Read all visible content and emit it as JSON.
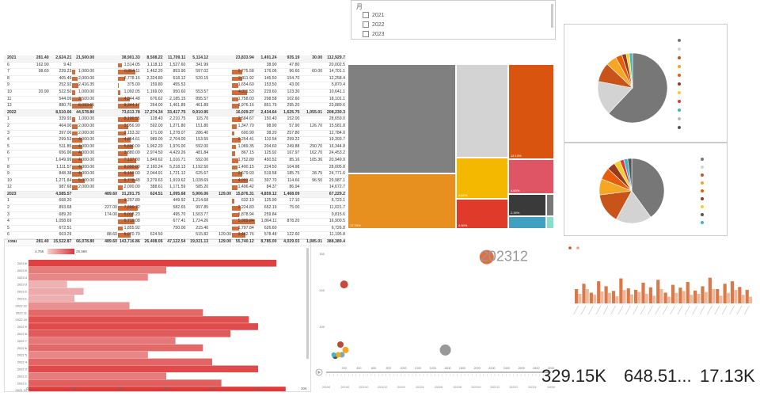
{
  "slicer": {
    "title": "月",
    "options": [
      "2021",
      "2022",
      "2023"
    ]
  },
  "matrix": {
    "rows": [
      {
        "type": "yr",
        "label": "2021",
        "cells": [
          "281.40",
          "2,624.21",
          "21,500.00",
          "",
          "38,901.33",
          "8,508.22",
          "11,709.11",
          "5,114.12",
          "",
          "23,833.94",
          "1,491.24",
          "935.19",
          "30.00",
          "112,929.7"
        ]
      },
      {
        "type": "m",
        "label": "6",
        "cells": [
          "162.90",
          "9.42",
          "",
          "",
          "1,514.05",
          "1,118.13",
          "1,527.60",
          "341.99",
          "",
          "",
          "38.90",
          "47.80",
          "",
          "20,002.5"
        ]
      },
      {
        "type": "m",
        "label": "7",
        "cells": [
          "98.60",
          "239.23",
          "1,000.00",
          "",
          "6,854.11",
          "1,462.20",
          "853.90",
          "597.02",
          "",
          "2,775.58",
          "176.06",
          "96.60",
          "60.00",
          "14,701.1"
        ]
      },
      {
        "type": "m",
        "label": "8",
        "cells": [
          "",
          "405.49",
          "2,000.00",
          "",
          "2,778.16",
          "2,324.80",
          "618.12",
          "520.15",
          "",
          "2,811.92",
          "145.50",
          "154.70",
          "",
          "12,258.4"
        ]
      },
      {
        "type": "m",
        "label": "9",
        "cells": [
          "",
          "252.92",
          "2,416.35",
          "",
          "375.00",
          "159.80",
          "455.53",
          "",
          "",
          "1,654.60",
          "153.50",
          "43.00",
          "",
          "5,870.4"
        ]
      },
      {
        "type": "m",
        "label": "10",
        "cells": [
          "20.90",
          "522.50",
          "1,000.00",
          "",
          "1,092.05",
          "1,169.00",
          "950.60",
          "553.57",
          "",
          "4,011.53",
          "229.60",
          "123.30",
          "",
          "10,641.1"
        ]
      },
      {
        "type": "m",
        "label": "11",
        "cells": [
          "",
          "544.09",
          "3,500.00",
          "",
          "4,844.48",
          "676.62",
          "2,185.15",
          "895.57",
          "",
          "1,758.03",
          "298.58",
          "102.60",
          "",
          "18,101.1"
        ]
      },
      {
        "type": "m",
        "label": "12",
        "cells": [
          "",
          "880.76",
          "8,083.65",
          "",
          "8,344.17",
          "264.00",
          "1,461.89",
          "461.89",
          "",
          "1,976.16",
          "851.79",
          "295.20",
          "",
          "23,889.6"
        ]
      },
      {
        "type": "yr",
        "label": "2022",
        "cells": [
          "",
          "8,510.06",
          "44,578.80",
          "",
          "73,613.78",
          "17,274.34",
          "33,417.75",
          "9,910.95",
          "",
          "16,029.27",
          "2,434.64",
          "1,625.75",
          "1,055.01",
          "208,230.3"
        ]
      },
      {
        "type": "m",
        "label": "1",
        "cells": [
          "",
          "339.93",
          "1,000.00",
          "",
          "8,100.55",
          "128.40",
          "2,210.75",
          "115.70",
          "",
          "2,584.67",
          "150.40",
          "152.00",
          "",
          "28,659.0"
        ]
      },
      {
        "type": "m",
        "label": "2",
        "cells": [
          "",
          "464.00",
          "2,000.00",
          "",
          "3,956.90",
          "592.00",
          "1,271.80",
          "151.80",
          "",
          "1,347.70",
          "98.90",
          "57.90",
          "126.70",
          "15,581.8"
        ]
      },
      {
        "type": "m",
        "label": "3",
        "cells": [
          "",
          "397.06",
          "2,000.00",
          "",
          "3,153.32",
          "171.00",
          "1,278.07",
          "286.40",
          "",
          "600.90",
          "38.20",
          "257.80",
          "",
          "12,784.0"
        ]
      },
      {
        "type": "m",
        "label": "4",
        "cells": [
          "",
          "299.53",
          "4,000.00",
          "",
          "4,854.61",
          "989.00",
          "2,704.00",
          "153.55",
          "",
          "2,254.41",
          "110.54",
          "299.22",
          "",
          "19,393.7"
        ]
      },
      {
        "type": "m",
        "label": "5",
        "cells": [
          "",
          "511.85",
          "4,000.00",
          "",
          "5,890.00",
          "1,962.20",
          "1,976.00",
          "592.00",
          "",
          "1,089.35",
          "204.60",
          "249.88",
          "290.70",
          "16,344.8"
        ]
      },
      {
        "type": "m",
        "label": "6",
        "cells": [
          "",
          "656.96",
          "4,000.00",
          "",
          "3,880.00",
          "2,974.50",
          "4,429.26",
          "481.84",
          "",
          "867.15",
          "125.92",
          "167.97",
          "162.70",
          "24,453.2"
        ]
      },
      {
        "type": "m",
        "label": "7",
        "cells": [
          "",
          "1,649.99",
          "4,000.00",
          "",
          "7,137.80",
          "1,849.62",
          "1,016.71",
          "592.00",
          "",
          "1,752.89",
          "450.52",
          "85.16",
          "105.36",
          "20,949.9"
        ]
      },
      {
        "type": "m",
        "label": "8",
        "cells": [
          "",
          "1,111.57",
          "4,000.00",
          "",
          "8,000.00",
          "2,160.24",
          "5,218.13",
          "1,192.50",
          "",
          "1,400.15",
          "224.50",
          "104.98",
          "",
          "28,005.8"
        ]
      },
      {
        "type": "m",
        "label": "9",
        "cells": [
          "",
          "848.38",
          "4,000.00",
          "",
          "6,160.00",
          "2,044.91",
          "1,721.12",
          "625.67",
          "",
          "2,679.93",
          "519.58",
          "185.75",
          "28.75",
          "24,771.6"
        ]
      },
      {
        "type": "m",
        "label": "10",
        "cells": [
          "",
          "1,271.84",
          "5,000.00",
          "",
          "6,778.48",
          "3,279.63",
          "1,919.62",
          "1,028.69",
          "",
          "4,091.41",
          "397.70",
          "114.66",
          "96.50",
          "29,987.1"
        ]
      },
      {
        "type": "m",
        "label": "12",
        "cells": [
          "",
          "987.68",
          "2,000.00",
          "",
          "2,000.00",
          "388.61",
          "1,171.59",
          "585.20",
          "",
          "1,496.42",
          "84.37",
          "86.94",
          "",
          "14,672.7"
        ]
      },
      {
        "type": "yr",
        "label": "2023",
        "cells": [
          "",
          "4,585.57",
          "",
          "489.60",
          "31,201.75",
          "624.51",
          "1,095.68",
          "5,906.06",
          "129.00",
          "15,876.31",
          "4,859.12",
          "1,468.09",
          "",
          "67,229.2"
        ]
      },
      {
        "type": "m",
        "label": "1",
        "cells": [
          "",
          "668.20",
          "",
          "",
          "3,297.80",
          "",
          "449.92",
          "1,214.68",
          "",
          "632.10",
          "125.90",
          "17.10",
          "",
          "6,723.1"
        ]
      },
      {
        "type": "m",
        "label": "2",
        "cells": [
          "",
          "893.68",
          "",
          "227.00",
          "7,890.72",
          "",
          "582.65",
          "997.85",
          "",
          "2,224.83",
          "652.19",
          "75.00",
          "",
          "11,021.7"
        ]
      },
      {
        "type": "m",
        "label": "3",
        "cells": [
          "",
          "689.20",
          "",
          "174.00",
          "6,018.23",
          "",
          "495.70",
          "1,503.77",
          "",
          "1,878.94",
          "259.84",
          "",
          "",
          "9,815.6"
        ]
      },
      {
        "type": "m",
        "label": "4",
        "cells": [
          "",
          "1,058.69",
          "",
          "",
          "6,710.08",
          "",
          "677.41",
          "1,724.26",
          "",
          "5,989.84",
          "1,864.11",
          "878.20",
          "",
          "16,900.5"
        ]
      },
      {
        "type": "m",
        "label": "5",
        "cells": [
          "",
          "672.51",
          "",
          "",
          "1,855.92",
          "",
          "750.00",
          "215.40",
          "",
          "1,797.84",
          "626.60",
          "",
          "",
          "6,726.8"
        ]
      },
      {
        "type": "m",
        "label": "6",
        "cells": [
          "",
          "603.29",
          "",
          "88.60",
          "5,070.70",
          "624.50",
          "",
          "515.82",
          "129.00",
          "3,462.76",
          "578.48",
          "122.60",
          "",
          "11,195.8"
        ]
      },
      {
        "type": "tot",
        "label": "Total",
        "cells": [
          "281.40",
          "15,522.87",
          "66,078.80",
          "489.60",
          "143,716.86",
          "26,408.06",
          "47,122.54",
          "19,021.13",
          "129.00",
          "55,740.12",
          "8,785.00",
          "4,029.03",
          "1,085.01",
          "388,389.4"
        ]
      }
    ]
  },
  "treemap": {
    "labels": [
      "12.13%",
      "4.62%",
      "4.60%",
      "4.60%",
      "2.39%",
      "17.70%"
    ]
  },
  "pie1": {
    "slices": [
      62,
      16,
      9,
      5,
      3,
      2,
      1.5,
      1.5
    ],
    "colors": [
      "#777777",
      "#d3d3d3",
      "#c8541a",
      "#f5a623",
      "#e85d0c",
      "#9b3a1a",
      "#f4cf2a",
      "#3fb5c8"
    ],
    "legend_colors": [
      "#777777",
      "#d3d3d3",
      "#c8541a",
      "#f5a623",
      "#e85d0c",
      "#9b3a1a",
      "#f4cf2a",
      "#e03b3b",
      "#3fb5c8",
      "#bbbbbb",
      "#555555"
    ]
  },
  "pie2": {
    "slices": [
      40,
      18,
      15,
      8,
      6,
      4,
      3,
      2,
      2,
      2
    ],
    "colors": [
      "#777777",
      "#d3d3d3",
      "#c8541a",
      "#f5a623",
      "#e85d0c",
      "#9b3a1a",
      "#f4cf2a",
      "#e03b3b",
      "#3fb5c8",
      "#555555"
    ],
    "legend_colors": [
      "#777777",
      "#d3d3d3",
      "#c8541a",
      "#f5a623",
      "#e85d0c",
      "#9b3a1a",
      "#f4cf2a",
      "#555555",
      "#3fb5c8"
    ]
  },
  "chart_data": [
    {
      "type": "bar",
      "orientation": "horizontal",
      "legend_min": "4,766",
      "legend_max": "29,989",
      "categories": [
        "2023 6",
        "2023 5",
        "2023 4",
        "2023 3",
        "2023 2",
        "2023 1",
        "2022 12",
        "2022 11",
        "2022 10",
        "2022 9",
        "2022 8",
        "2022 7",
        "2022 6",
        "2022 5",
        "2022 4",
        "2022 3",
        "2022 2",
        "2022 1",
        "2021 12",
        "2021 11",
        "2021 10",
        "2021 9"
      ],
      "values": [
        27000,
        15000,
        13000,
        4200,
        6000,
        5000,
        11000,
        19000,
        24000,
        25000,
        22000,
        16000,
        19000,
        13000,
        20000,
        25000,
        15000,
        21000,
        28000,
        30000,
        23000,
        10000
      ],
      "xticks": [
        "0K",
        "5K",
        "10K",
        "15K",
        "20K",
        "25K",
        "30K"
      ],
      "xlim": [
        0,
        30000
      ]
    },
    {
      "type": "scatter",
      "annotation": "202312",
      "yticks": [
        "300",
        "200",
        "100"
      ],
      "xticks": [
        "200",
        "400",
        "600",
        "800",
        "1000",
        "1200",
        "1400",
        "1600",
        "1800",
        "2000",
        "2200",
        "2400",
        "2600",
        "2800",
        "3000"
      ],
      "xlim": [
        0,
        3000
      ],
      "ylim": [
        0,
        300
      ],
      "points": [
        {
          "x": 2130,
          "y": 290,
          "r": 9,
          "color": "#e07040"
        },
        {
          "x": 200,
          "y": 215,
          "r": 5,
          "color": "#c94a3a"
        },
        {
          "x": 1570,
          "y": 35,
          "r": 7,
          "color": "#999999"
        },
        {
          "x": 150,
          "y": 50,
          "r": 4,
          "color": "#b84a3a"
        },
        {
          "x": 220,
          "y": 35,
          "r": 4,
          "color": "#f5a623"
        },
        {
          "x": 80,
          "y": 18,
          "r": 3.5,
          "color": "#555555"
        },
        {
          "x": 170,
          "y": 22,
          "r": 3.5,
          "color": "#7aa6c2"
        },
        {
          "x": 120,
          "y": 22,
          "r": 3.5,
          "color": "#e8b020"
        },
        {
          "x": 60,
          "y": 22,
          "r": 3,
          "color": "#3fb5c8"
        }
      ],
      "timeline": [
        "2021/6",
        "2021/8",
        "2021/10",
        "2021/12",
        "2022/2",
        "2022/4",
        "2022/6",
        "2022/8",
        "2022/10",
        "2022/12",
        "2023/2",
        "2023/4",
        "2023/6"
      ]
    },
    {
      "type": "bar",
      "orientation": "vertical-grouped",
      "series": [
        {
          "name": "a",
          "values": [
            40,
            55,
            30,
            62,
            48,
            35,
            70,
            42,
            38,
            58,
            45,
            66,
            30,
            52,
            44,
            60,
            36,
            48,
            72,
            40,
            55,
            62,
            46,
            38
          ]
        },
        {
          "name": "b",
          "values": [
            20,
            30,
            18,
            25,
            22,
            15,
            28,
            19,
            24,
            20,
            16,
            30,
            14,
            22,
            26,
            18,
            20,
            24,
            30,
            16,
            22,
            28,
            18,
            14
          ]
        }
      ]
    }
  ],
  "cards": {
    "card1": "329.15K",
    "card2": "648.51...",
    "card3": "17.13K"
  }
}
